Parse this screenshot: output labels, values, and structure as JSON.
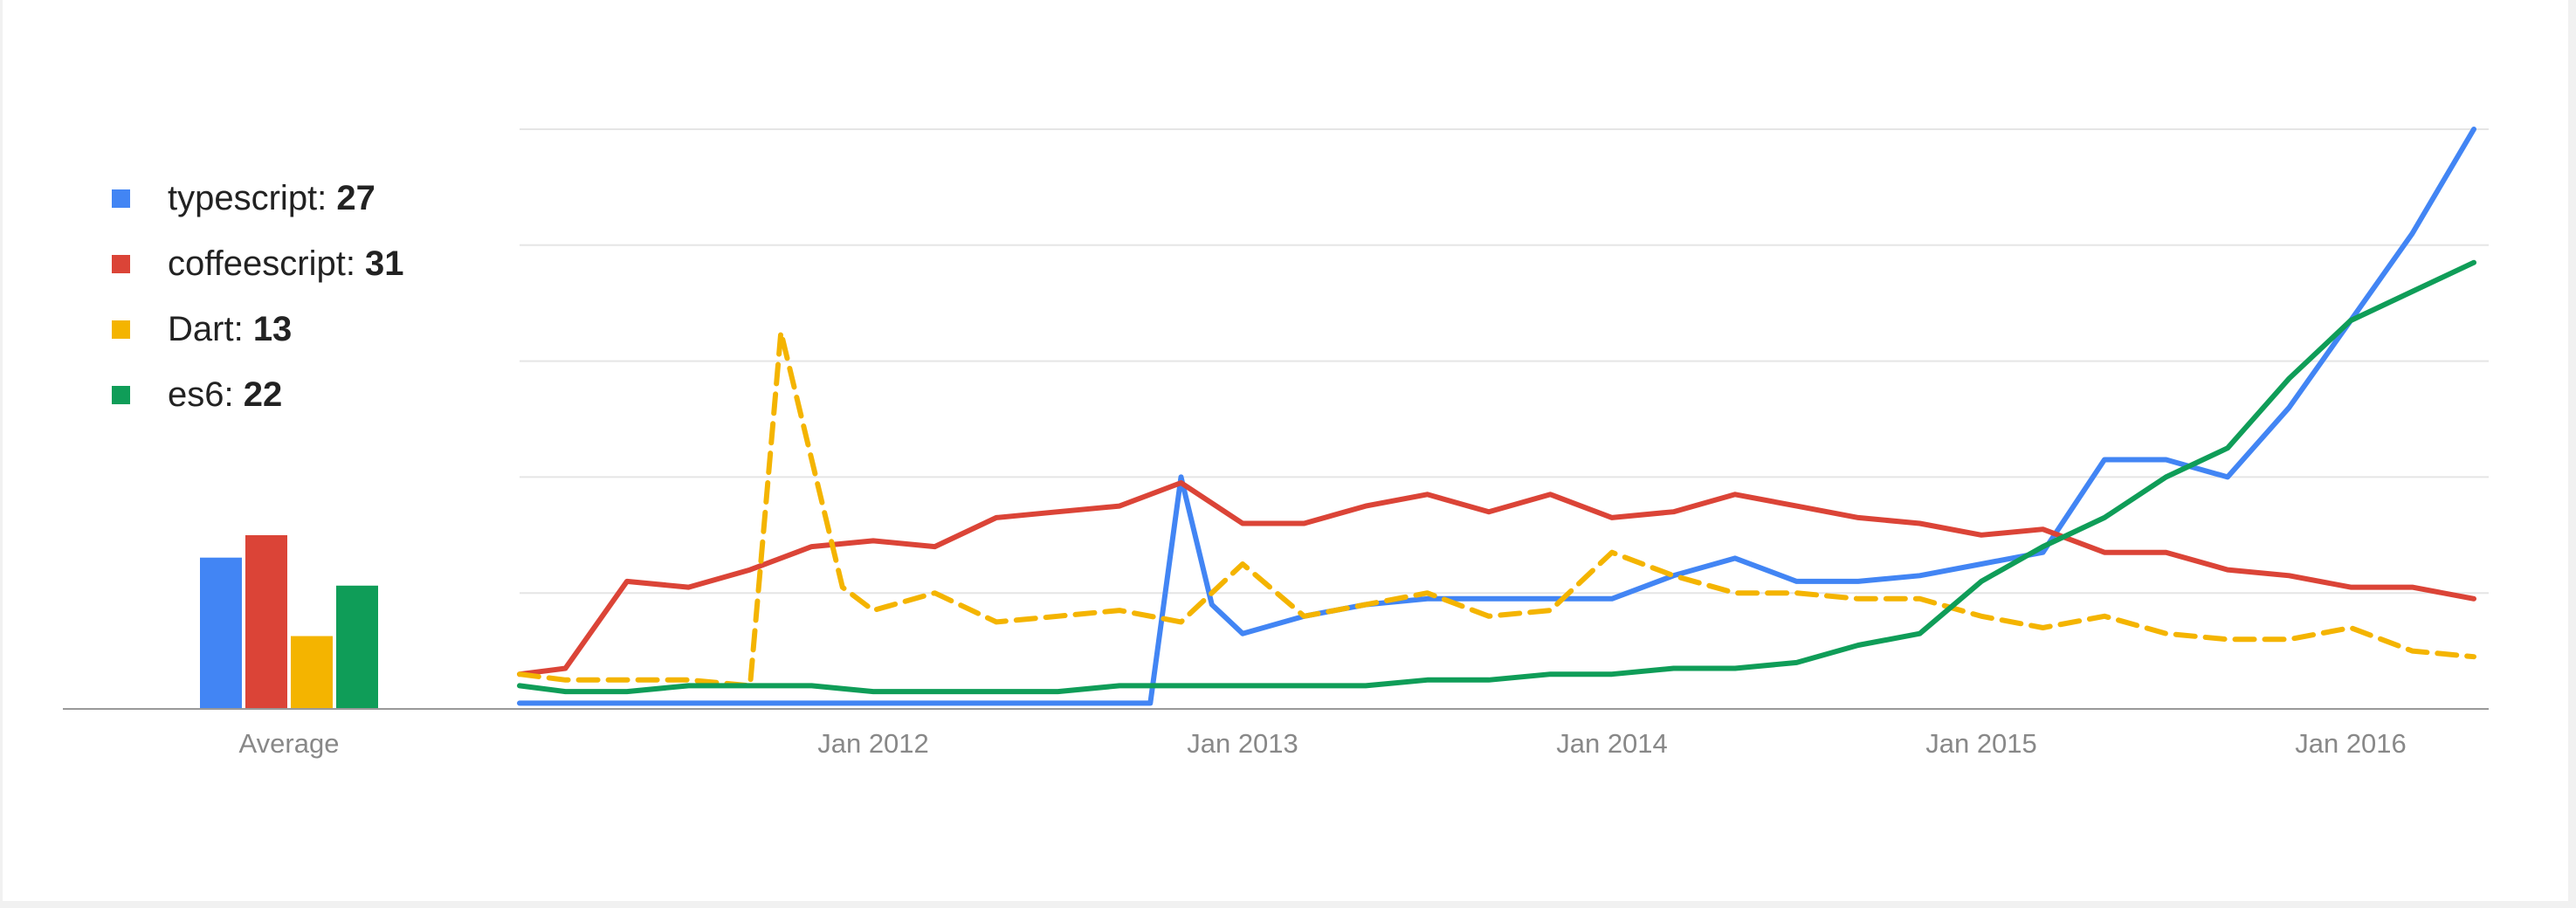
{
  "chart_data": {
    "type": "line",
    "title": "",
    "xlabel": "",
    "ylabel": "",
    "x_ticks": [
      "Jan 2012",
      "Jan 2013",
      "Jan 2014",
      "Jan 2015",
      "Jan 2016"
    ],
    "ylim": [
      0,
      100
    ],
    "grid": true,
    "legend_position": "top-left",
    "average_label": "Average",
    "series": [
      {
        "name": "typescript",
        "average": 27,
        "color": "#4285f4",
        "dash": false,
        "x": [
          "2011-01",
          "2011-04",
          "2011-07",
          "2011-10",
          "2012-01",
          "2012-04",
          "2012-07",
          "2012-10",
          "2012-11",
          "2012-12",
          "2013-01",
          "2013-03",
          "2013-05",
          "2013-07",
          "2013-09",
          "2013-11",
          "2014-01",
          "2014-03",
          "2014-05",
          "2014-07",
          "2014-09",
          "2014-11",
          "2015-01",
          "2015-03",
          "2015-05",
          "2015-07",
          "2015-09",
          "2015-11",
          "2016-01",
          "2016-03",
          "2016-05"
        ],
        "values": [
          1,
          1,
          1,
          1,
          1,
          1,
          1,
          1,
          40,
          18,
          13,
          16,
          18,
          19,
          19,
          19,
          19,
          23,
          26,
          22,
          22,
          23,
          25,
          27,
          43,
          43,
          40,
          52,
          67,
          82,
          100
        ]
      },
      {
        "name": "coffeescript",
        "average": 31,
        "color": "#db4437",
        "dash": false,
        "x": [
          "2011-01",
          "2011-03",
          "2011-05",
          "2011-07",
          "2011-09",
          "2011-11",
          "2012-01",
          "2012-03",
          "2012-05",
          "2012-07",
          "2012-09",
          "2012-11",
          "2013-01",
          "2013-03",
          "2013-05",
          "2013-07",
          "2013-09",
          "2013-11",
          "2014-01",
          "2014-03",
          "2014-05",
          "2014-07",
          "2014-09",
          "2014-11",
          "2015-01",
          "2015-03",
          "2015-05",
          "2015-07",
          "2015-09",
          "2015-11",
          "2016-01",
          "2016-03",
          "2016-05"
        ],
        "values": [
          6,
          7,
          22,
          21,
          24,
          28,
          29,
          28,
          33,
          34,
          35,
          39,
          32,
          32,
          35,
          37,
          34,
          37,
          33,
          34,
          37,
          35,
          33,
          32,
          30,
          31,
          27,
          27,
          24,
          23,
          21,
          21,
          19
        ]
      },
      {
        "name": "Dart",
        "average": 13,
        "color": "#f4b400",
        "dash": true,
        "x": [
          "2011-01",
          "2011-03",
          "2011-05",
          "2011-07",
          "2011-09",
          "2011-10",
          "2011-12",
          "2012-01",
          "2012-03",
          "2012-05",
          "2012-07",
          "2012-09",
          "2012-11",
          "2013-01",
          "2013-03",
          "2013-05",
          "2013-07",
          "2013-09",
          "2013-11",
          "2014-01",
          "2014-03",
          "2014-05",
          "2014-07",
          "2014-09",
          "2014-11",
          "2015-01",
          "2015-03",
          "2015-05",
          "2015-07",
          "2015-09",
          "2015-11",
          "2016-01",
          "2016-03",
          "2016-05"
        ],
        "values": [
          6,
          5,
          5,
          5,
          4,
          65,
          21,
          17,
          20,
          15,
          16,
          17,
          15,
          25,
          16,
          18,
          20,
          16,
          17,
          27,
          23,
          20,
          20,
          19,
          19,
          16,
          14,
          16,
          13,
          12,
          12,
          14,
          10,
          9
        ]
      },
      {
        "name": "es6",
        "average": 22,
        "color": "#0f9d58",
        "dash": false,
        "x": [
          "2011-01",
          "2011-03",
          "2011-05",
          "2011-07",
          "2011-09",
          "2011-11",
          "2012-01",
          "2012-03",
          "2012-05",
          "2012-07",
          "2012-09",
          "2012-11",
          "2013-01",
          "2013-03",
          "2013-05",
          "2013-07",
          "2013-09",
          "2013-11",
          "2014-01",
          "2014-03",
          "2014-05",
          "2014-07",
          "2014-09",
          "2014-11",
          "2015-01",
          "2015-03",
          "2015-05",
          "2015-07",
          "2015-09",
          "2015-11",
          "2016-01",
          "2016-03",
          "2016-05"
        ],
        "values": [
          4,
          3,
          3,
          4,
          4,
          4,
          3,
          3,
          3,
          3,
          4,
          4,
          4,
          4,
          4,
          5,
          5,
          6,
          6,
          7,
          7,
          8,
          11,
          13,
          22,
          28,
          33,
          40,
          45,
          57,
          67,
          72,
          77
        ]
      }
    ]
  }
}
